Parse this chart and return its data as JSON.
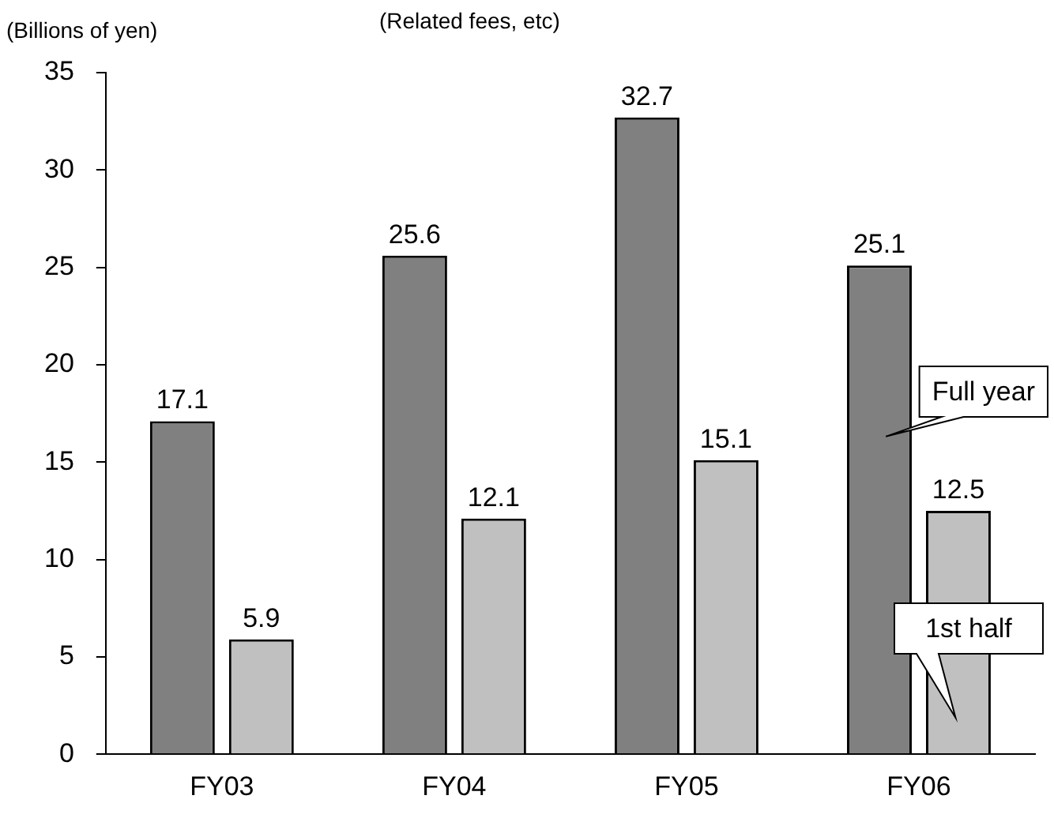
{
  "chart_data": {
    "type": "bar",
    "title": "(Related fees, etc)",
    "ylabel": "(Billions of yen)",
    "categories": [
      "FY03",
      "FY04",
      "FY05",
      "FY06"
    ],
    "series": [
      {
        "name": "Full year",
        "color": "#808080",
        "values": [
          17.1,
          25.6,
          32.7,
          25.1
        ]
      },
      {
        "name": "1st half",
        "color": "#c0c0c0",
        "values": [
          5.9,
          12.1,
          15.1,
          12.5
        ]
      }
    ],
    "ylim": [
      0,
      35
    ],
    "yticks": [
      0,
      5,
      10,
      15,
      20,
      25,
      30,
      35
    ],
    "grid": false,
    "legend": false,
    "data_labels": true
  }
}
